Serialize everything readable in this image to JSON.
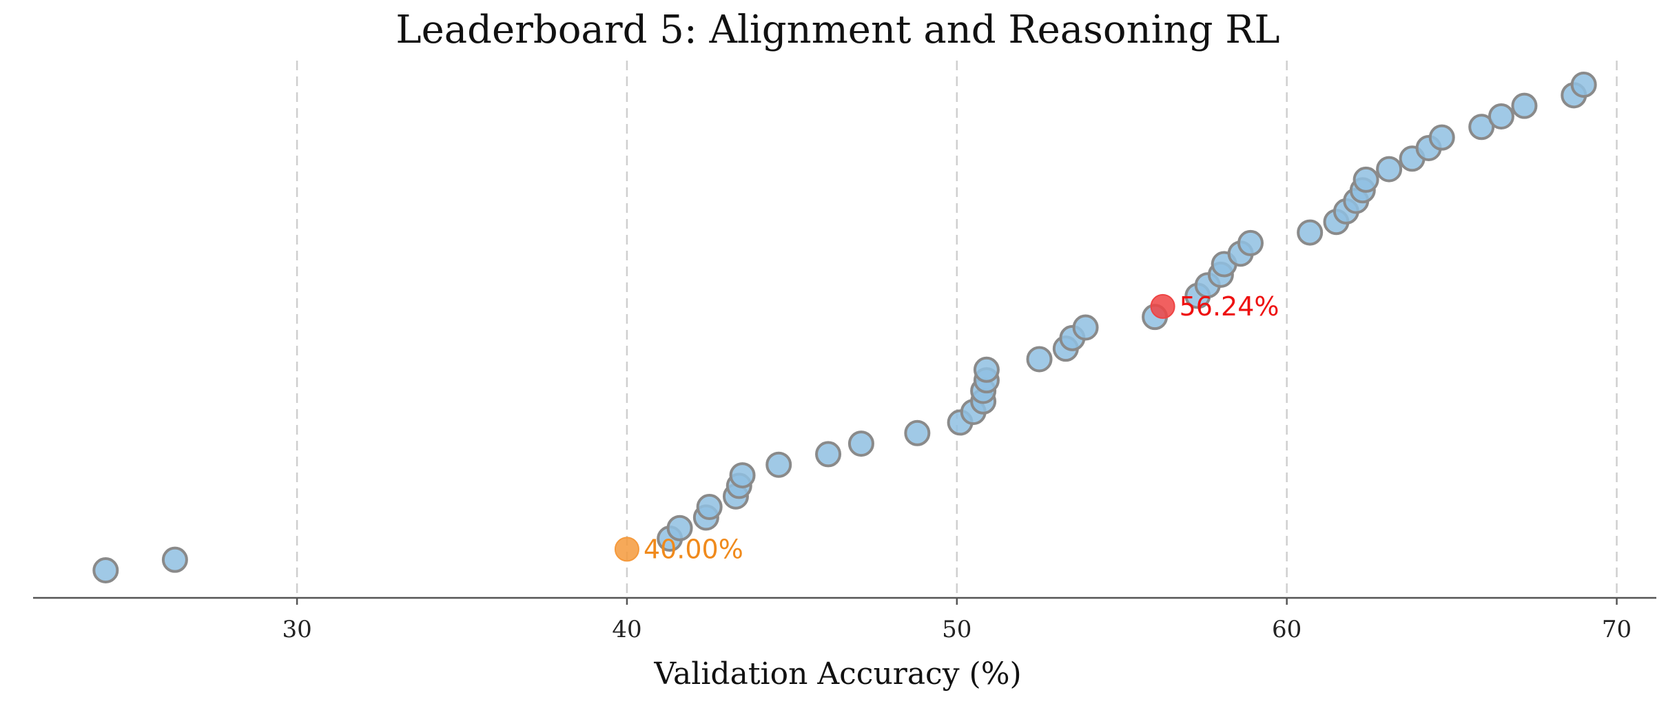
{
  "chart_data": {
    "type": "scatter",
    "title": "Leaderboard 5: Alignment and Reasoning RL",
    "xlabel": "Validation Accuracy (%)",
    "ylabel": "",
    "xlim": [
      22,
      71.2
    ],
    "xticks": [
      30,
      40,
      50,
      60,
      70
    ],
    "grid": "vertical-dashed",
    "series": [
      {
        "name": "entries",
        "color": "#8fc0e2",
        "values": [
          24.2,
          26.3,
          41.3,
          41.6,
          42.4,
          42.5,
          43.3,
          43.4,
          43.5,
          44.6,
          46.1,
          47.1,
          48.8,
          50.1,
          50.5,
          50.8,
          50.8,
          50.9,
          50.9,
          52.5,
          53.3,
          53.5,
          53.9,
          56.0,
          57.3,
          57.6,
          58.0,
          58.1,
          58.6,
          58.9,
          60.7,
          61.5,
          61.8,
          62.1,
          62.3,
          62.4,
          63.1,
          63.8,
          64.3,
          64.7,
          65.9,
          66.5,
          67.2,
          68.7,
          69.0
        ]
      }
    ],
    "highlights": [
      {
        "value": 40.0,
        "rank": 2,
        "label": "40.00%",
        "color": "#f59a3c",
        "text_color": "#f08a1c"
      },
      {
        "value": 56.24,
        "rank": 26,
        "label": "56.24%",
        "color": "#ee4444",
        "text_color": "#ee1111"
      }
    ]
  }
}
